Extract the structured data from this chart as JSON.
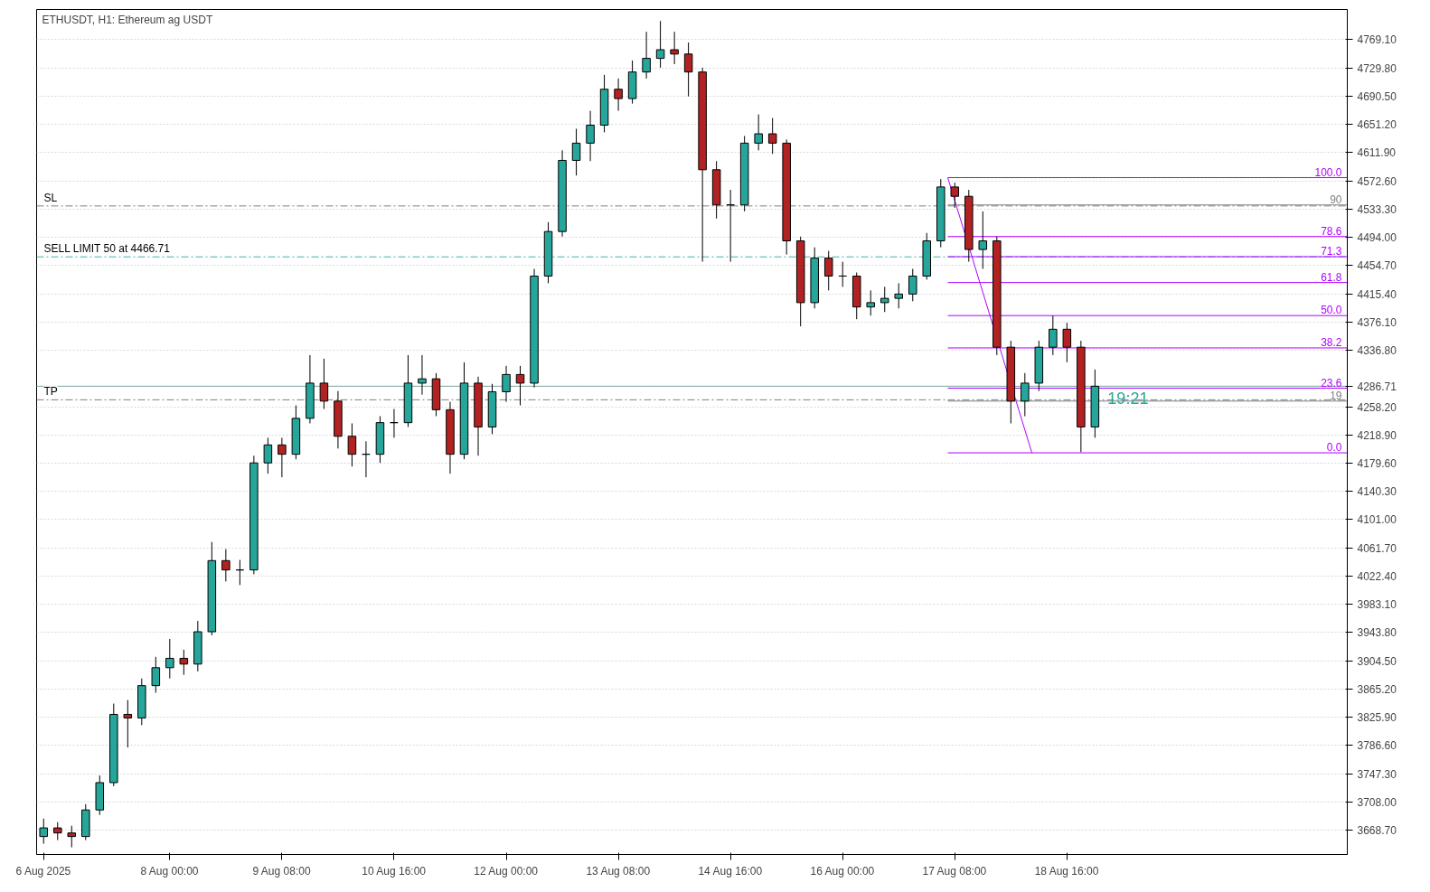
{
  "chart_data": {
    "type": "candlestick",
    "title": "ETHUSDT, H1:  Ethereum ag USDT",
    "x": [
      "2025-08-06T12:00",
      "2025-08-06T16:00",
      "2025-08-06T20:00",
      "2025-08-07T00:00",
      "2025-08-07T04:00",
      "2025-08-07T08:00",
      "2025-08-07T12:00",
      "2025-08-07T16:00",
      "2025-08-07T20:00",
      "2025-08-08T00:00",
      "2025-08-08T04:00",
      "2025-08-08T08:00",
      "2025-08-08T12:00",
      "2025-08-08T16:00",
      "2025-08-08T20:00",
      "2025-08-09T00:00",
      "2025-08-09T04:00",
      "2025-08-09T08:00",
      "2025-08-09T12:00",
      "2025-08-09T16:00",
      "2025-08-09T20:00",
      "2025-08-10T00:00",
      "2025-08-10T04:00",
      "2025-08-10T08:00",
      "2025-08-10T12:00",
      "2025-08-10T16:00",
      "2025-08-10T20:00",
      "2025-08-11T00:00",
      "2025-08-11T04:00",
      "2025-08-11T08:00",
      "2025-08-11T12:00",
      "2025-08-11T16:00",
      "2025-08-11T20:00",
      "2025-08-12T00:00",
      "2025-08-12T04:00",
      "2025-08-12T08:00",
      "2025-08-12T12:00",
      "2025-08-12T16:00",
      "2025-08-12T20:00",
      "2025-08-13T00:00",
      "2025-08-13T04:00",
      "2025-08-13T08:00",
      "2025-08-13T12:00",
      "2025-08-13T16:00",
      "2025-08-13T20:00",
      "2025-08-14T00:00",
      "2025-08-14T04:00",
      "2025-08-14T08:00",
      "2025-08-14T12:00",
      "2025-08-14T16:00",
      "2025-08-14T20:00",
      "2025-08-15T00:00",
      "2025-08-15T04:00",
      "2025-08-15T08:00",
      "2025-08-15T12:00",
      "2025-08-15T16:00",
      "2025-08-15T20:00",
      "2025-08-16T00:00",
      "2025-08-16T04:00",
      "2025-08-16T08:00",
      "2025-08-16T12:00",
      "2025-08-16T16:00",
      "2025-08-16T20:00",
      "2025-08-17T00:00",
      "2025-08-17T04:00",
      "2025-08-17T08:00",
      "2025-08-17T12:00",
      "2025-08-17T16:00",
      "2025-08-17T20:00",
      "2025-08-18T00:00",
      "2025-08-18T04:00",
      "2025-08-18T08:00",
      "2025-08-18T12:00",
      "2025-08-18T16:00",
      "2025-08-18T20:00",
      "2025-08-19T00:00"
    ],
    "ohlc": [
      [
        3660,
        3685,
        3650,
        3672
      ],
      [
        3672,
        3680,
        3655,
        3665
      ],
      [
        3665,
        3675,
        3645,
        3660
      ],
      [
        3660,
        3705,
        3655,
        3697
      ],
      [
        3697,
        3745,
        3690,
        3735
      ],
      [
        3735,
        3845,
        3730,
        3830
      ],
      [
        3830,
        3850,
        3784,
        3825
      ],
      [
        3825,
        3880,
        3815,
        3870
      ],
      [
        3870,
        3910,
        3860,
        3895
      ],
      [
        3895,
        3935,
        3880,
        3908
      ],
      [
        3908,
        3920,
        3885,
        3900
      ],
      [
        3900,
        3960,
        3890,
        3945
      ],
      [
        3945,
        4070,
        3940,
        4044
      ],
      [
        4044,
        4060,
        4015,
        4031
      ],
      [
        4031,
        4045,
        4010,
        4031
      ],
      [
        4031,
        4190,
        4025,
        4180
      ],
      [
        4180,
        4215,
        4165,
        4205
      ],
      [
        4205,
        4215,
        4160,
        4192
      ],
      [
        4192,
        4260,
        4185,
        4242
      ],
      [
        4242,
        4330,
        4235,
        4291
      ],
      [
        4291,
        4325,
        4255,
        4266
      ],
      [
        4266,
        4280,
        4200,
        4217
      ],
      [
        4217,
        4235,
        4175,
        4192
      ],
      [
        4192,
        4210,
        4160,
        4192
      ],
      [
        4192,
        4245,
        4180,
        4236
      ],
      [
        4236,
        4255,
        4215,
        4236
      ],
      [
        4236,
        4330,
        4230,
        4291
      ],
      [
        4291,
        4330,
        4275,
        4297
      ],
      [
        4297,
        4305,
        4245,
        4254
      ],
      [
        4254,
        4265,
        4165,
        4192
      ],
      [
        4192,
        4320,
        4185,
        4291
      ],
      [
        4291,
        4300,
        4190,
        4230
      ],
      [
        4230,
        4290,
        4220,
        4279
      ],
      [
        4279,
        4315,
        4265,
        4303
      ],
      [
        4303,
        4315,
        4260,
        4291
      ],
      [
        4291,
        4450,
        4285,
        4440
      ],
      [
        4440,
        4515,
        4430,
        4502
      ],
      [
        4502,
        4615,
        4495,
        4601
      ],
      [
        4601,
        4645,
        4580,
        4625
      ],
      [
        4625,
        4670,
        4600,
        4650
      ],
      [
        4650,
        4720,
        4640,
        4700
      ],
      [
        4700,
        4715,
        4670,
        4687
      ],
      [
        4687,
        4740,
        4680,
        4724
      ],
      [
        4724,
        4780,
        4715,
        4743
      ],
      [
        4743,
        4795,
        4730,
        4755
      ],
      [
        4755,
        4780,
        4735,
        4749
      ],
      [
        4749,
        4765,
        4690,
        4724
      ],
      [
        4724,
        4730,
        4460,
        4588
      ],
      [
        4588,
        4600,
        4520,
        4539
      ],
      [
        4539,
        4560,
        4460,
        4539
      ],
      [
        4539,
        4635,
        4530,
        4625
      ],
      [
        4625,
        4665,
        4615,
        4638
      ],
      [
        4638,
        4660,
        4610,
        4625
      ],
      [
        4625,
        4630,
        4470,
        4489
      ],
      [
        4489,
        4495,
        4370,
        4403
      ],
      [
        4403,
        4480,
        4395,
        4465
      ],
      [
        4465,
        4475,
        4420,
        4440
      ],
      [
        4440,
        4460,
        4425,
        4440
      ],
      [
        4440,
        4445,
        4380,
        4397
      ],
      [
        4397,
        4420,
        4385,
        4403
      ],
      [
        4403,
        4425,
        4390,
        4409
      ],
      [
        4409,
        4430,
        4395,
        4415
      ],
      [
        4415,
        4450,
        4405,
        4440
      ],
      [
        4440,
        4500,
        4435,
        4489
      ],
      [
        4489,
        4575,
        4480,
        4564
      ],
      [
        4564,
        4570,
        4535,
        4551
      ],
      [
        4551,
        4560,
        4460,
        4477
      ],
      [
        4477,
        4530,
        4450,
        4489
      ],
      [
        4489,
        4495,
        4330,
        4341
      ],
      [
        4341,
        4350,
        4235,
        4266
      ],
      [
        4266,
        4305,
        4245,
        4291
      ],
      [
        4291,
        4350,
        4280,
        4341
      ],
      [
        4341,
        4385,
        4330,
        4366
      ],
      [
        4366,
        4375,
        4320,
        4341
      ],
      [
        4341,
        4350,
        4195,
        4230
      ],
      [
        4230,
        4310,
        4215,
        4286.71
      ]
    ],
    "series": [
      {
        "type": "line",
        "color": "#b000ff",
        "x": [
          "2025-08-17T06:00",
          "2025-08-18T06:00"
        ],
        "values": [
          4577,
          4194
        ]
      },
      {
        "type": "line",
        "name": "100.0",
        "color": "#b000ff",
        "x": [
          "2025-08-17T06:00",
          "2025-08-22T00:00"
        ],
        "values": [
          4577,
          4577
        ]
      },
      {
        "type": "line",
        "name": "90",
        "color": "#808080",
        "x": [
          "2025-08-17T06:00",
          "2025-08-22T00:00"
        ],
        "values": [
          4539,
          4539
        ]
      },
      {
        "type": "line",
        "name": "78.6",
        "color": "#b000ff",
        "x": [
          "2025-08-17T06:00",
          "2025-08-22T00:00"
        ],
        "values": [
          4495,
          4495
        ]
      },
      {
        "type": "line",
        "name": "71.3",
        "color": "#b000ff",
        "x": [
          "2025-08-17T06:00",
          "2025-08-22T00:00"
        ],
        "values": [
          4467,
          4467
        ]
      },
      {
        "type": "line",
        "name": "61.8",
        "color": "#b000ff",
        "x": [
          "2025-08-17T06:00",
          "2025-08-22T00:00"
        ],
        "values": [
          4431,
          4431
        ]
      },
      {
        "type": "line",
        "name": "50.0",
        "color": "#b000ff",
        "x": [
          "2025-08-17T06:00",
          "2025-08-22T00:00"
        ],
        "values": [
          4385,
          4385
        ]
      },
      {
        "type": "line",
        "name": "38.2",
        "color": "#b000ff",
        "x": [
          "2025-08-17T06:00",
          "2025-08-22T00:00"
        ],
        "values": [
          4340,
          4340
        ]
      },
      {
        "type": "line",
        "name": "23.6",
        "color": "#b000ff",
        "x": [
          "2025-08-17T06:00",
          "2025-08-22T00:00"
        ],
        "values": [
          4284,
          4284
        ]
      },
      {
        "type": "line",
        "name": "19",
        "color": "#808080",
        "x": [
          "2025-08-17T06:00",
          "2025-08-22T00:00"
        ],
        "values": [
          4266,
          4266
        ]
      },
      {
        "type": "line",
        "name": "0.0",
        "color": "#b000ff",
        "x": [
          "2025-08-17T06:00",
          "2025-08-22T00:00"
        ],
        "values": [
          4194,
          4194
        ]
      }
    ],
    "xlim": [
      "2025-08-06T10:00",
      "2025-08-22T00:00"
    ],
    "xticks": [
      {
        "value": "2025-08-06T12:00",
        "label": "6 Aug 2025"
      },
      {
        "value": "2025-08-08T00:00",
        "label": "8 Aug 00:00"
      },
      {
        "value": "2025-08-09T08:00",
        "label": "9 Aug 08:00"
      },
      {
        "value": "2025-08-10T16:00",
        "label": "10 Aug 16:00"
      },
      {
        "value": "2025-08-12T00:00",
        "label": "12 Aug 00:00"
      },
      {
        "value": "2025-08-13T08:00",
        "label": "13 Aug 08:00"
      },
      {
        "value": "2025-08-14T16:00",
        "label": "14 Aug 16:00"
      },
      {
        "value": "2025-08-16T00:00",
        "label": "16 Aug 00:00"
      },
      {
        "value": "2025-08-17T08:00",
        "label": "17 Aug 08:00"
      },
      {
        "value": "2025-08-18T16:00",
        "label": "18 Aug 16:00"
      }
    ],
    "ylim": [
      3635,
      4811
    ],
    "yticks": [
      {
        "value": 3668.7,
        "label": "3668.70"
      },
      {
        "value": 3708,
        "label": "3708.00"
      },
      {
        "value": 3747.3,
        "label": "3747.30"
      },
      {
        "value": 3786.6,
        "label": "3786.60"
      },
      {
        "value": 3825.9,
        "label": "3825.90"
      },
      {
        "value": 3865.2,
        "label": "3865.20"
      },
      {
        "value": 3904.5,
        "label": "3904.50"
      },
      {
        "value": 3943.8,
        "label": "3943.80"
      },
      {
        "value": 3983.1,
        "label": "3983.10"
      },
      {
        "value": 4022.4,
        "label": "4022.40"
      },
      {
        "value": 4061.7,
        "label": "4061.70"
      },
      {
        "value": 4101,
        "label": "4101.00"
      },
      {
        "value": 4140.3,
        "label": "4140.30"
      },
      {
        "value": 4179.6,
        "label": "4179.60"
      },
      {
        "value": 4218.9,
        "label": "4218.90"
      },
      {
        "value": 4258.2,
        "label": "4258.20"
      },
      {
        "value": 4286.71,
        "label": "4286.71"
      },
      {
        "value": 4336.8,
        "label": "4336.80"
      },
      {
        "value": 4376.1,
        "label": "4376.10"
      },
      {
        "value": 4415.4,
        "label": "4415.40"
      },
      {
        "value": 4454.7,
        "label": "4454.70"
      },
      {
        "value": 4494,
        "label": "4494.00"
      },
      {
        "value": 4533.3,
        "label": "4533.30"
      },
      {
        "value": 4572.6,
        "label": "4572.60"
      },
      {
        "value": 4611.9,
        "label": "4611.90"
      },
      {
        "value": 4651.2,
        "label": "4651.20"
      },
      {
        "value": 4690.5,
        "label": "4690.50"
      },
      {
        "value": 4729.8,
        "label": "4729.80"
      },
      {
        "value": 4769.1,
        "label": "4769.10"
      }
    ],
    "ref_lines": [
      {
        "axis": "y",
        "value": 4537.6,
        "label": "SL",
        "color": "#808080",
        "line_style": "dashed"
      },
      {
        "axis": "y",
        "value": 4466.71,
        "label": "SELL LIMIT 50 at 4466.71",
        "color": "#40b0a8",
        "line_style": "dashed"
      },
      {
        "axis": "y",
        "value": 4267.8,
        "label": "TP",
        "color": "#808080",
        "line_style": "dashed"
      },
      {
        "axis": "y",
        "value": 4286.71,
        "label": null,
        "color": "#7fa8a4",
        "line_style": "solid"
      }
    ],
    "annotations": [
      "19:21"
    ],
    "grid": true
  }
}
